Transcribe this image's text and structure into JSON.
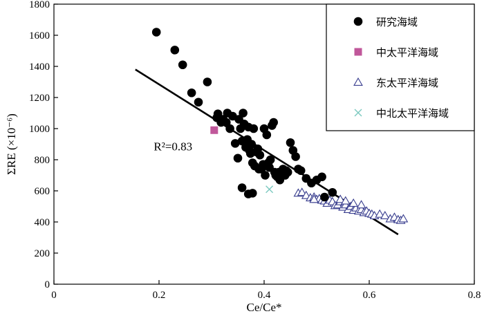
{
  "chart_data": {
    "type": "scatter",
    "xlabel": "Ce/Ce*",
    "ylabel": "ΣRE (×10⁻⁶)",
    "xlim": [
      0,
      0.8
    ],
    "ylim": [
      0,
      1800
    ],
    "x_ticks": [
      0,
      0.2,
      0.4,
      0.6,
      0.8
    ],
    "x_tick_labels": [
      "0",
      "0.2",
      "0.4",
      "0.6",
      "0.8"
    ],
    "y_ticks": [
      0,
      200,
      400,
      600,
      800,
      1000,
      1200,
      1400,
      1600,
      1800
    ],
    "y_tick_labels": [
      "0",
      "200",
      "400",
      "600",
      "800",
      "1000",
      "1200",
      "1400",
      "1600",
      "1800"
    ],
    "grid": false,
    "legend_position": "top-right",
    "annotation": {
      "text": "R²=0.83",
      "x": 0.19,
      "y": 860
    },
    "regression_line": {
      "x": [
        0.155,
        0.655
      ],
      "y": [
        1380,
        320
      ]
    },
    "series": [
      {
        "name": "研究海域",
        "marker": "circle",
        "color": "#000000",
        "points": [
          [
            0.195,
            1620
          ],
          [
            0.23,
            1505
          ],
          [
            0.245,
            1410
          ],
          [
            0.262,
            1230
          ],
          [
            0.275,
            1170
          ],
          [
            0.292,
            1300
          ],
          [
            0.31,
            1070
          ],
          [
            0.312,
            1095
          ],
          [
            0.318,
            1040
          ],
          [
            0.322,
            1060
          ],
          [
            0.328,
            1040
          ],
          [
            0.33,
            1100
          ],
          [
            0.335,
            1000
          ],
          [
            0.34,
            1080
          ],
          [
            0.345,
            905
          ],
          [
            0.35,
            810
          ],
          [
            0.352,
            1060
          ],
          [
            0.355,
            1000
          ],
          [
            0.358,
            920
          ],
          [
            0.36,
            1100
          ],
          [
            0.362,
            1030
          ],
          [
            0.365,
            880
          ],
          [
            0.368,
            930
          ],
          [
            0.37,
            1010
          ],
          [
            0.372,
            860
          ],
          [
            0.374,
            840
          ],
          [
            0.376,
            900
          ],
          [
            0.378,
            780
          ],
          [
            0.38,
            1000
          ],
          [
            0.382,
            760
          ],
          [
            0.385,
            850
          ],
          [
            0.388,
            870
          ],
          [
            0.39,
            740
          ],
          [
            0.392,
            830
          ],
          [
            0.395,
            740
          ],
          [
            0.398,
            770
          ],
          [
            0.4,
            1000
          ],
          [
            0.402,
            700
          ],
          [
            0.405,
            960
          ],
          [
            0.408,
            780
          ],
          [
            0.41,
            750
          ],
          [
            0.412,
            800
          ],
          [
            0.415,
            1020
          ],
          [
            0.418,
            1040
          ],
          [
            0.42,
            720
          ],
          [
            0.422,
            700
          ],
          [
            0.425,
            690
          ],
          [
            0.428,
            720
          ],
          [
            0.43,
            670
          ],
          [
            0.433,
            700
          ],
          [
            0.436,
            740
          ],
          [
            0.44,
            700
          ],
          [
            0.442,
            730
          ],
          [
            0.445,
            720
          ],
          [
            0.45,
            910
          ],
          [
            0.455,
            860
          ],
          [
            0.46,
            820
          ],
          [
            0.465,
            740
          ],
          [
            0.47,
            730
          ],
          [
            0.48,
            680
          ],
          [
            0.49,
            650
          ],
          [
            0.5,
            670
          ],
          [
            0.51,
            690
          ],
          [
            0.515,
            560
          ],
          [
            0.53,
            590
          ],
          [
            0.358,
            620
          ],
          [
            0.37,
            580
          ],
          [
            0.378,
            585
          ]
        ]
      },
      {
        "name": "中太平洋海域",
        "marker": "square",
        "color": "#c0579a",
        "points": [
          [
            0.305,
            990
          ]
        ]
      },
      {
        "name": "东太平洋海域",
        "marker": "triangle",
        "color": "#3a3f8f",
        "points": [
          [
            0.465,
            585
          ],
          [
            0.472,
            590
          ],
          [
            0.48,
            570
          ],
          [
            0.488,
            555
          ],
          [
            0.495,
            560
          ],
          [
            0.5,
            545
          ],
          [
            0.505,
            550
          ],
          [
            0.51,
            540
          ],
          [
            0.515,
            535
          ],
          [
            0.52,
            520
          ],
          [
            0.525,
            540
          ],
          [
            0.53,
            530
          ],
          [
            0.535,
            505
          ],
          [
            0.54,
            510
          ],
          [
            0.545,
            530
          ],
          [
            0.55,
            495
          ],
          [
            0.555,
            510
          ],
          [
            0.56,
            480
          ],
          [
            0.565,
            500
          ],
          [
            0.57,
            475
          ],
          [
            0.575,
            490
          ],
          [
            0.58,
            470
          ],
          [
            0.585,
            480
          ],
          [
            0.59,
            460
          ],
          [
            0.595,
            470
          ],
          [
            0.6,
            455
          ],
          [
            0.605,
            450
          ],
          [
            0.61,
            440
          ],
          [
            0.62,
            450
          ],
          [
            0.63,
            440
          ],
          [
            0.64,
            420
          ],
          [
            0.648,
            430
          ],
          [
            0.655,
            415
          ],
          [
            0.66,
            410
          ],
          [
            0.665,
            420
          ],
          [
            0.545,
            545
          ],
          [
            0.555,
            535
          ],
          [
            0.57,
            520
          ],
          [
            0.585,
            510
          ],
          [
            0.495,
            545
          ]
        ]
      },
      {
        "name": "中北太平洋海域",
        "marker": "x",
        "color": "#7cc9c0",
        "points": [
          [
            0.41,
            610
          ]
        ]
      }
    ]
  }
}
